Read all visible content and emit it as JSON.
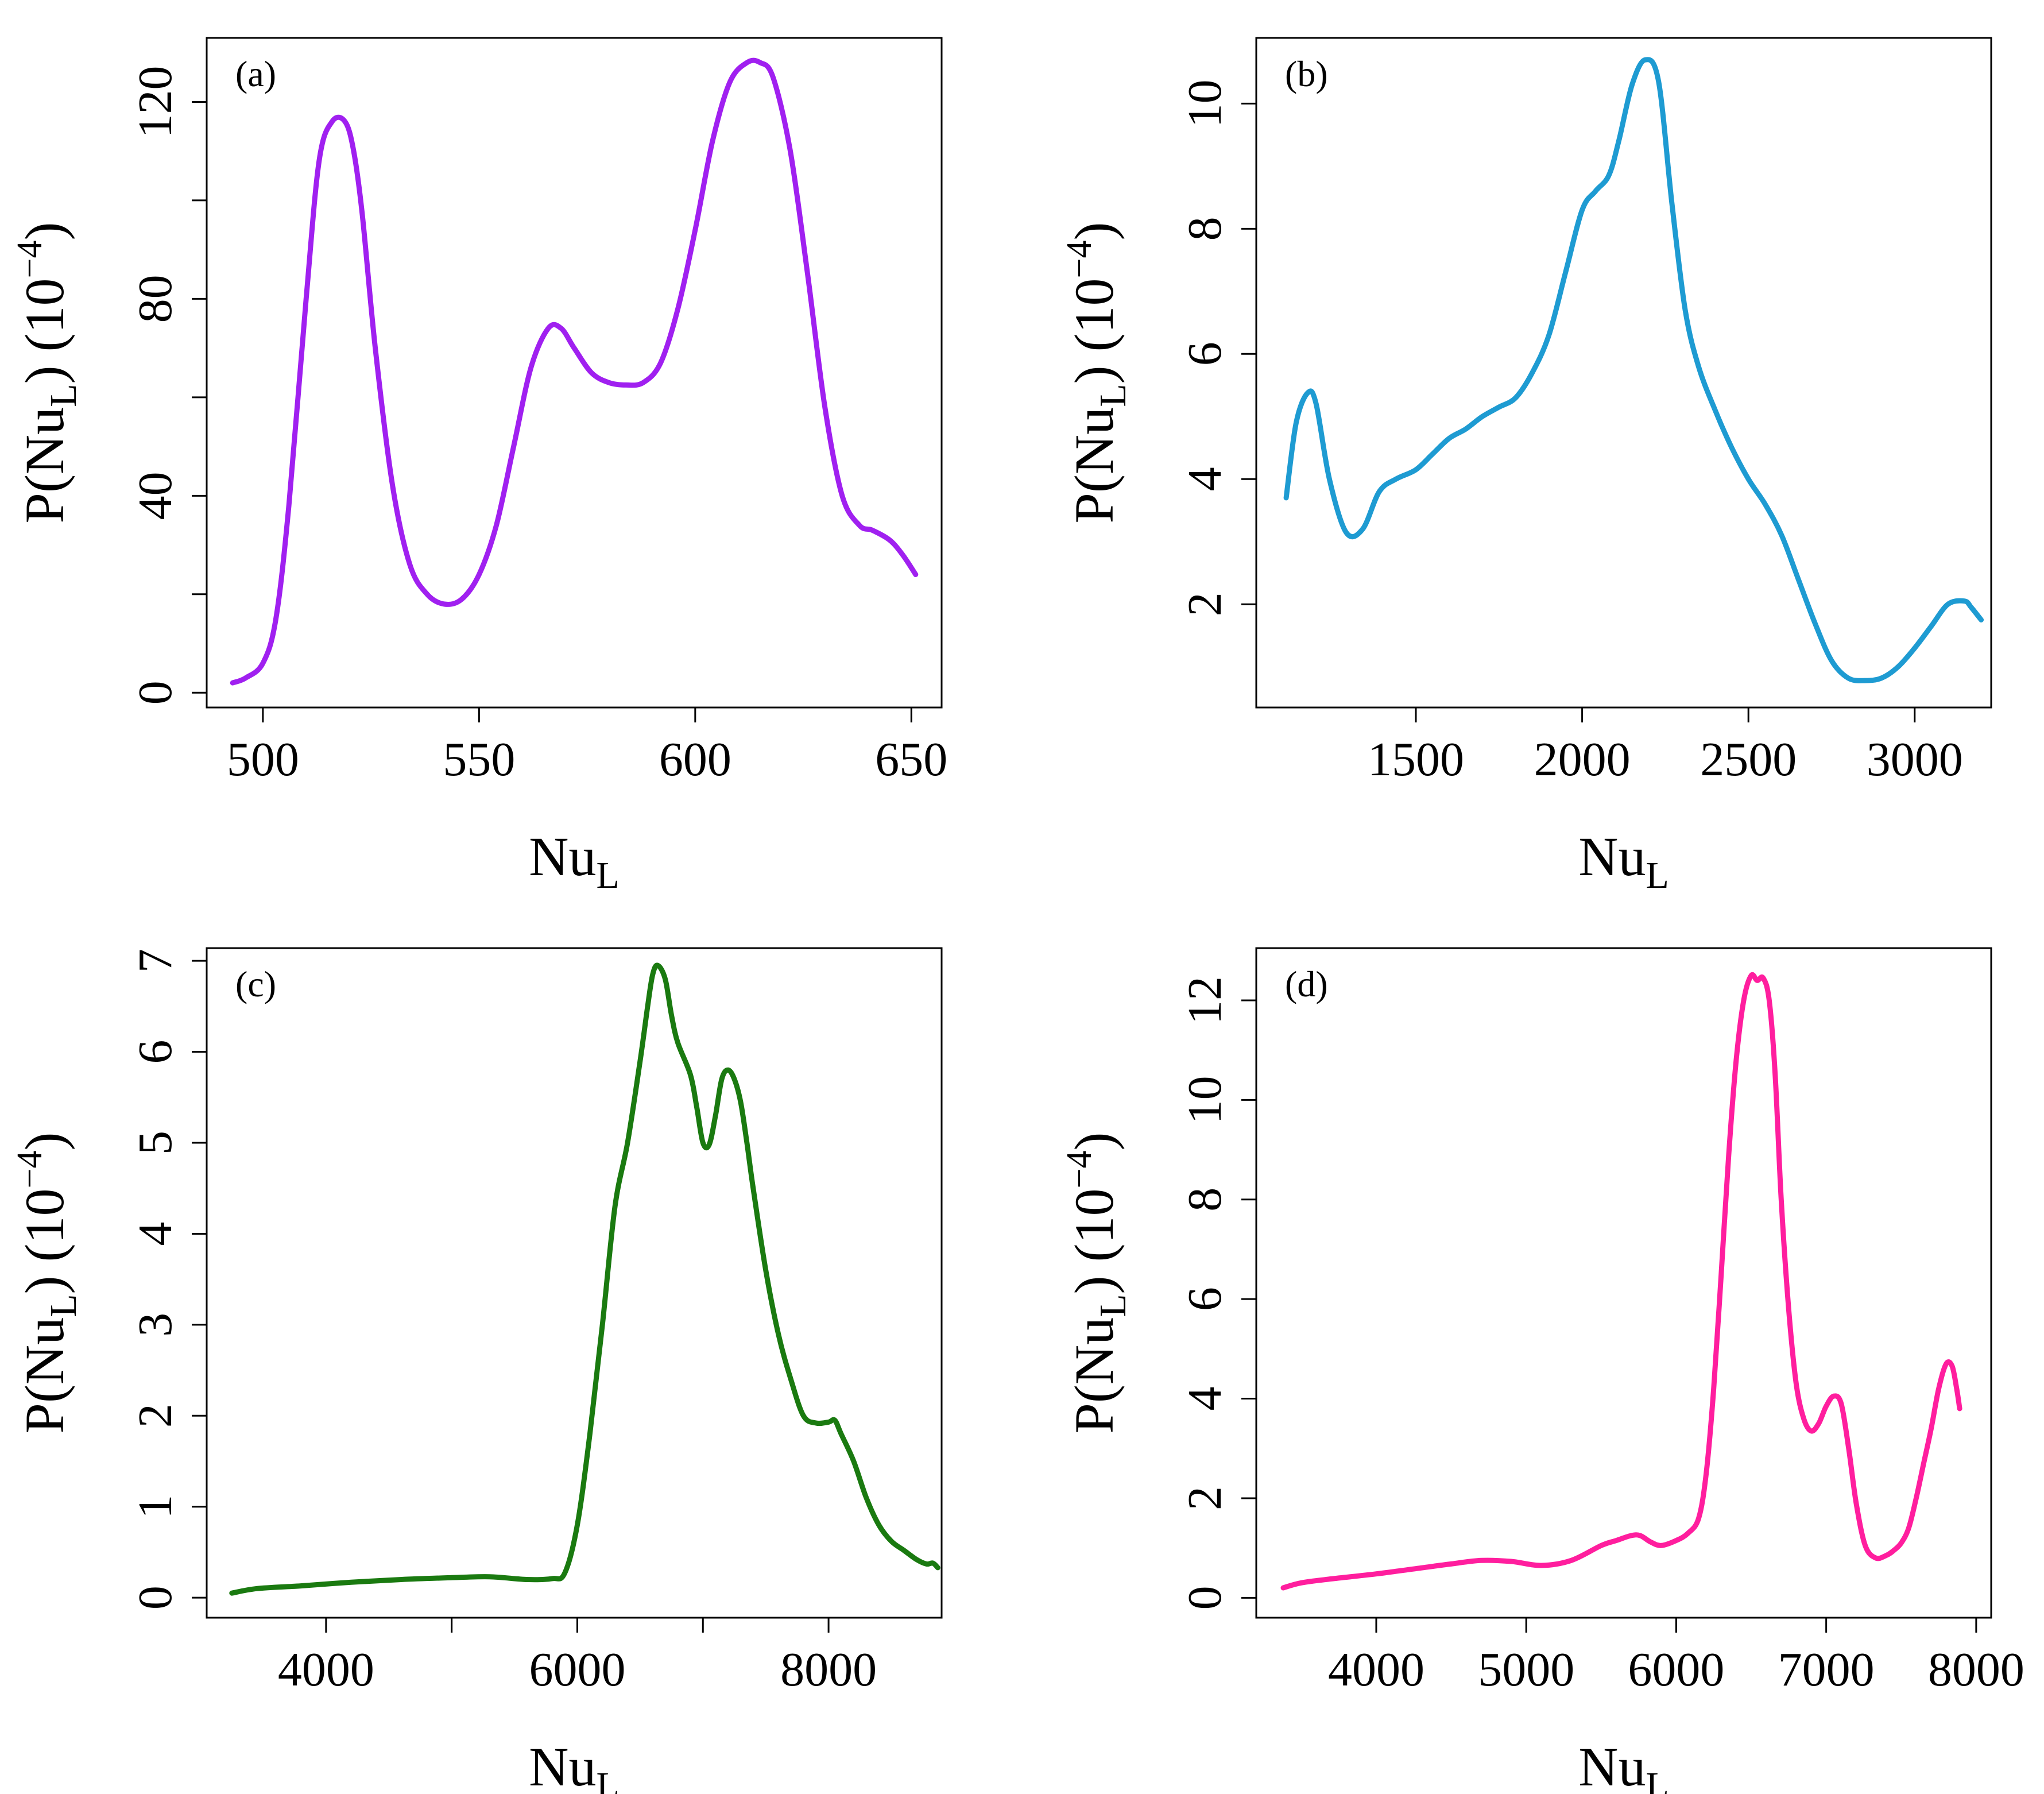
{
  "colors": {
    "a": "#A020F0",
    "b": "#1E9BD2",
    "c": "#1A7A10",
    "d": "#FF1E9E"
  },
  "chart_data": [
    {
      "panel": "(a)",
      "type": "line",
      "xlabel_main": "Nu",
      "xlabel_sub": "L",
      "ylabel": {
        "p": "P(Nu",
        "sub": "L",
        "close": ") (10",
        "exp": "−4",
        "end": ")"
      },
      "xlim": [
        487,
        657
      ],
      "ylim": [
        -3,
        133
      ],
      "xticks": [
        500,
        550,
        600,
        650
      ],
      "yticks": [
        0,
        40,
        80,
        120
      ],
      "yminor": [
        20,
        60,
        100
      ],
      "color_key": "a",
      "x": [
        493,
        496,
        500,
        503,
        506,
        510,
        513,
        516,
        519,
        521,
        523,
        526,
        530,
        534,
        538,
        542,
        546,
        550,
        554,
        558,
        562,
        566,
        569,
        572,
        576,
        580,
        584,
        588,
        592,
        596,
        600,
        604,
        608,
        612,
        615,
        618,
        622,
        626,
        630,
        634,
        638,
        641,
        645,
        648,
        651
      ],
      "y": [
        2,
        3,
        6,
        15,
        38,
        80,
        108,
        116,
        116,
        110,
        97,
        70,
        42,
        26,
        20,
        18,
        19,
        24,
        34,
        50,
        66,
        74,
        74,
        70,
        65,
        63,
        62.5,
        63,
        67,
        78,
        94,
        112,
        124,
        128,
        128,
        125,
        110,
        85,
        58,
        40,
        34,
        33,
        31,
        28,
        24
      ]
    },
    {
      "panel": "(b)",
      "type": "line",
      "xlabel_main": "Nu",
      "xlabel_sub": "L",
      "ylabel": {
        "p": "P(Nu",
        "sub": "L",
        "close": ") (10",
        "exp": "−4",
        "end": ")"
      },
      "xlim": [
        1020,
        3230
      ],
      "ylim": [
        0.35,
        11.05
      ],
      "xticks": [
        1500,
        2000,
        2500,
        3000
      ],
      "yticks": [
        2,
        4,
        6,
        8,
        10
      ],
      "yminor": [],
      "color_key": "b",
      "x": [
        1110,
        1140,
        1175,
        1200,
        1240,
        1290,
        1340,
        1390,
        1440,
        1500,
        1550,
        1600,
        1650,
        1700,
        1750,
        1800,
        1850,
        1900,
        1950,
        2000,
        2040,
        2080,
        2110,
        2150,
        2190,
        2230,
        2270,
        2310,
        2350,
        2400,
        2450,
        2500,
        2550,
        2600,
        2650,
        2700,
        2750,
        2800,
        2850,
        2900,
        2950,
        3000,
        3050,
        3100,
        3150,
        3170,
        3200
      ],
      "y": [
        3.7,
        4.9,
        5.38,
        5.2,
        4.0,
        3.15,
        3.2,
        3.8,
        4.0,
        4.15,
        4.4,
        4.65,
        4.8,
        5.0,
        5.15,
        5.3,
        5.7,
        6.3,
        7.3,
        8.3,
        8.6,
        8.85,
        9.4,
        10.3,
        10.7,
        10.35,
        8.4,
        6.7,
        5.8,
        5.1,
        4.5,
        4.0,
        3.6,
        3.1,
        2.4,
        1.7,
        1.1,
        0.82,
        0.78,
        0.82,
        1.0,
        1.3,
        1.65,
        2.0,
        2.05,
        1.95,
        1.75
      ]
    },
    {
      "panel": "(c)",
      "type": "line",
      "xlabel_main": "Nu",
      "xlabel_sub": "L",
      "ylabel": {
        "p": "P(Nu",
        "sub": "L",
        "close": ") (10",
        "exp": "−4",
        "end": ")"
      },
      "xlim": [
        3050,
        8900
      ],
      "ylim": [
        -0.22,
        7.14
      ],
      "xticks": [
        4000,
        6000,
        8000
      ],
      "yticks": [
        0,
        1,
        2,
        3,
        4,
        5,
        6,
        7
      ],
      "yminor": [],
      "xminor": [
        5000,
        7000
      ],
      "color_key": "c",
      "x": [
        3250,
        3450,
        3800,
        4200,
        4600,
        5000,
        5300,
        5600,
        5800,
        5900,
        6000,
        6100,
        6200,
        6300,
        6400,
        6500,
        6560,
        6600,
        6640,
        6700,
        6750,
        6800,
        6900,
        6950,
        7000,
        7050,
        7100,
        7150,
        7200,
        7250,
        7300,
        7350,
        7400,
        7500,
        7600,
        7700,
        7800,
        7900,
        8000,
        8050,
        8100,
        8200,
        8300,
        8400,
        8500,
        8600,
        8700,
        8780,
        8830,
        8870
      ],
      "y": [
        0.05,
        0.1,
        0.13,
        0.17,
        0.2,
        0.22,
        0.23,
        0.2,
        0.21,
        0.27,
        0.8,
        1.8,
        3.0,
        4.3,
        5.0,
        5.9,
        6.5,
        6.85,
        6.95,
        6.8,
        6.4,
        6.1,
        5.75,
        5.4,
        5.0,
        4.98,
        5.3,
        5.7,
        5.8,
        5.7,
        5.45,
        5.0,
        4.5,
        3.6,
        2.9,
        2.4,
        2.0,
        1.92,
        1.93,
        1.95,
        1.8,
        1.5,
        1.1,
        0.8,
        0.62,
        0.52,
        0.42,
        0.37,
        0.38,
        0.33
      ]
    },
    {
      "panel": "(d)",
      "type": "line",
      "xlabel_main": "Nu",
      "xlabel_sub": "L",
      "ylabel": {
        "p": "P(Nu",
        "sub": "L",
        "close": ") (10",
        "exp": "−4",
        "end": ")"
      },
      "xlim": [
        3200,
        8100
      ],
      "ylim": [
        -0.4,
        13.05
      ],
      "xticks": [
        4000,
        5000,
        6000,
        7000,
        8000
      ],
      "yticks": [
        0,
        2,
        4,
        6,
        8,
        10,
        12
      ],
      "yminor": [],
      "color_key": "d",
      "x": [
        3380,
        3500,
        3700,
        4000,
        4300,
        4500,
        4700,
        4900,
        5100,
        5300,
        5500,
        5600,
        5700,
        5760,
        5830,
        5900,
        6000,
        6080,
        6150,
        6200,
        6250,
        6300,
        6350,
        6400,
        6450,
        6500,
        6540,
        6580,
        6620,
        6660,
        6700,
        6750,
        6800,
        6850,
        6900,
        6950,
        7000,
        7050,
        7100,
        7150,
        7200,
        7260,
        7330,
        7400,
        7450,
        7500,
        7550,
        7600,
        7650,
        7700,
        7750,
        7800,
        7840,
        7870,
        7890
      ],
      "y": [
        0.2,
        0.3,
        0.38,
        0.48,
        0.6,
        0.68,
        0.75,
        0.73,
        0.65,
        0.75,
        1.05,
        1.15,
        1.25,
        1.25,
        1.12,
        1.05,
        1.15,
        1.3,
        1.6,
        2.5,
        4.2,
        6.5,
        8.9,
        10.8,
        12.0,
        12.5,
        12.4,
        12.45,
        12.0,
        10.5,
        8.0,
        5.8,
        4.3,
        3.6,
        3.35,
        3.5,
        3.85,
        4.05,
        3.9,
        3.0,
        1.9,
        1.05,
        0.8,
        0.85,
        0.95,
        1.1,
        1.4,
        2.0,
        2.7,
        3.4,
        4.2,
        4.7,
        4.65,
        4.2,
        3.8
      ]
    }
  ]
}
